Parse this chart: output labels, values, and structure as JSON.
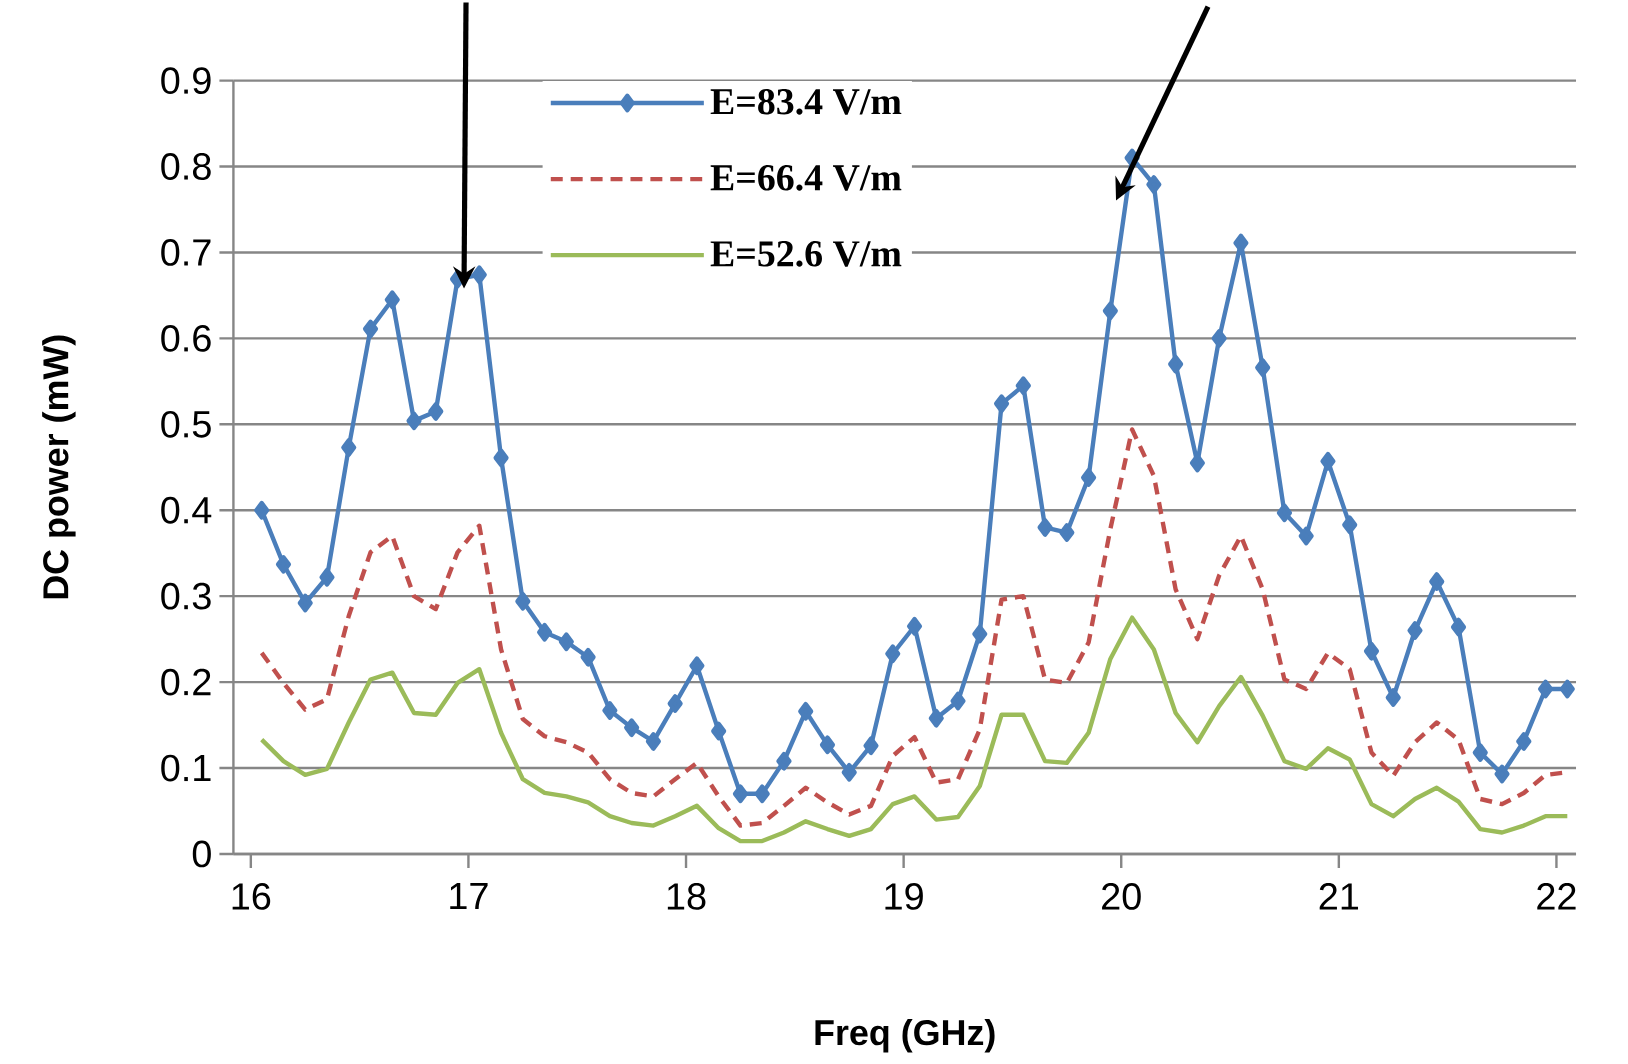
{
  "chart_data": {
    "type": "line",
    "xlabel": "Freq (GHz)",
    "ylabel": "DC power (mW)",
    "x": [
      16.05,
      16.15,
      16.25,
      16.35,
      16.45,
      16.55,
      16.65,
      16.75,
      16.85,
      16.95,
      17.05,
      17.15,
      17.25,
      17.35,
      17.45,
      17.55,
      17.65,
      17.75,
      17.85,
      17.95,
      18.05,
      18.15,
      18.25,
      18.35,
      18.45,
      18.55,
      18.65,
      18.75,
      18.85,
      18.95,
      19.05,
      19.15,
      19.25,
      19.35,
      19.45,
      19.55,
      19.65,
      19.75,
      19.85,
      19.95,
      20.05,
      20.15,
      20.25,
      20.35,
      20.45,
      20.55,
      20.65,
      20.75,
      20.85,
      20.95,
      21.05,
      21.15,
      21.25,
      21.35,
      21.45,
      21.55,
      21.65,
      21.75,
      21.85,
      21.95,
      22.05
    ],
    "series": [
      {
        "name": "E=83.4 V/m",
        "color": "#4a7ebb",
        "marker": "diamond",
        "line_style": "solid",
        "values": [
          0.4,
          0.337,
          0.292,
          0.322,
          0.473,
          0.611,
          0.645,
          0.504,
          0.515,
          0.669,
          0.674,
          0.461,
          0.294,
          0.258,
          0.247,
          0.229,
          0.167,
          0.147,
          0.131,
          0.175,
          0.219,
          0.143,
          0.07,
          0.07,
          0.108,
          0.166,
          0.127,
          0.095,
          0.126,
          0.233,
          0.265,
          0.158,
          0.178,
          0.256,
          0.524,
          0.545,
          0.38,
          0.374,
          0.438,
          0.632,
          0.81,
          0.779,
          0.57,
          0.455,
          0.6,
          0.711,
          0.566,
          0.397,
          0.37,
          0.457,
          0.383,
          0.236,
          0.182,
          0.26,
          0.317,
          0.264,
          0.118,
          0.093,
          0.131,
          0.192,
          0.192
        ]
      },
      {
        "name": "E=66.4 V/m",
        "color": "#c0504d",
        "marker": "none",
        "line_style": "dashed",
        "values": [
          0.234,
          0.199,
          0.168,
          0.18,
          0.277,
          0.351,
          0.37,
          0.3,
          0.285,
          0.351,
          0.382,
          0.238,
          0.157,
          0.137,
          0.13,
          0.118,
          0.087,
          0.071,
          0.067,
          0.087,
          0.106,
          0.067,
          0.033,
          0.036,
          0.056,
          0.077,
          0.06,
          0.046,
          0.056,
          0.114,
          0.136,
          0.083,
          0.087,
          0.145,
          0.296,
          0.3,
          0.203,
          0.199,
          0.246,
          0.378,
          0.494,
          0.44,
          0.308,
          0.25,
          0.324,
          0.37,
          0.308,
          0.203,
          0.192,
          0.234,
          0.215,
          0.118,
          0.091,
          0.13,
          0.153,
          0.133,
          0.064,
          0.058,
          0.071,
          0.092,
          0.095
        ]
      },
      {
        "name": "E=52.6 V/m",
        "color": "#9bbb59",
        "marker": "none",
        "line_style": "solid",
        "values": [
          0.133,
          0.108,
          0.092,
          0.099,
          0.153,
          0.203,
          0.211,
          0.164,
          0.162,
          0.199,
          0.215,
          0.141,
          0.087,
          0.071,
          0.067,
          0.06,
          0.044,
          0.036,
          0.033,
          0.044,
          0.056,
          0.03,
          0.015,
          0.015,
          0.025,
          0.038,
          0.029,
          0.021,
          0.029,
          0.058,
          0.067,
          0.04,
          0.043,
          0.079,
          0.162,
          0.162,
          0.108,
          0.106,
          0.141,
          0.227,
          0.275,
          0.238,
          0.164,
          0.13,
          0.172,
          0.206,
          0.161,
          0.108,
          0.099,
          0.123,
          0.11,
          0.058,
          0.044,
          0.064,
          0.077,
          0.061,
          0.029,
          0.025,
          0.033,
          0.044,
          0.044
        ]
      }
    ],
    "xlim": [
      15.92,
      22.09
    ],
    "xticks": [
      16,
      17,
      18,
      19,
      20,
      21,
      22
    ],
    "ylim": [
      0,
      0.9
    ],
    "yticks": [
      0,
      0.1,
      0.2,
      0.3,
      0.4,
      0.5,
      0.6,
      0.7,
      0.8,
      0.9
    ],
    "grid": "y",
    "legend": "top"
  }
}
